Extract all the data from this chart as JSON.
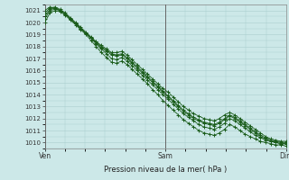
{
  "title": "Pression niveau de la mer( hPa )",
  "bg_color": "#cce8e8",
  "grid_color": "#aacece",
  "line_color": "#1a5c1a",
  "ylim": [
    1009.5,
    1021.5
  ],
  "yticks": [
    1010,
    1011,
    1012,
    1013,
    1014,
    1015,
    1016,
    1017,
    1018,
    1019,
    1020,
    1021
  ],
  "xtick_labels": [
    "Ven",
    "Sam",
    "Dim"
  ],
  "xtick_positions": [
    0,
    0.5,
    1.0
  ],
  "series": {
    "line1": [
      1021.0,
      1021.3,
      1021.2,
      1021.0,
      1020.7,
      1020.3,
      1019.9,
      1019.5,
      1019.1,
      1018.7,
      1018.4,
      1018.1,
      1017.8,
      1017.5,
      1017.5,
      1017.6,
      1017.3,
      1016.9,
      1016.5,
      1016.1,
      1015.7,
      1015.3,
      1014.9,
      1014.5,
      1014.2,
      1013.8,
      1013.4,
      1013.0,
      1012.7,
      1012.4,
      1012.2,
      1012.0,
      1011.9,
      1011.8,
      1012.0,
      1012.3,
      1012.5,
      1012.3,
      1012.0,
      1011.7,
      1011.4,
      1011.1,
      1010.8,
      1010.5,
      1010.3,
      1010.2,
      1010.1,
      1010.1
    ],
    "line2": [
      1020.5,
      1021.1,
      1021.2,
      1021.0,
      1020.7,
      1020.3,
      1019.9,
      1019.5,
      1019.1,
      1018.7,
      1018.3,
      1017.9,
      1017.6,
      1017.3,
      1017.2,
      1017.3,
      1017.0,
      1016.6,
      1016.2,
      1015.8,
      1015.4,
      1015.0,
      1014.6,
      1014.2,
      1013.8,
      1013.4,
      1013.0,
      1012.6,
      1012.3,
      1012.0,
      1011.8,
      1011.6,
      1011.5,
      1011.4,
      1011.6,
      1011.9,
      1012.2,
      1012.0,
      1011.7,
      1011.4,
      1011.1,
      1010.8,
      1010.5,
      1010.3,
      1010.1,
      1010.0,
      1009.9,
      1009.9
    ],
    "line3": [
      1020.8,
      1021.2,
      1021.3,
      1021.1,
      1020.8,
      1020.4,
      1020.0,
      1019.6,
      1019.2,
      1018.8,
      1018.4,
      1018.0,
      1017.7,
      1017.4,
      1017.3,
      1017.4,
      1017.1,
      1016.7,
      1016.3,
      1015.9,
      1015.5,
      1015.1,
      1014.7,
      1014.3,
      1013.9,
      1013.5,
      1013.1,
      1012.7,
      1012.4,
      1012.1,
      1011.9,
      1011.7,
      1011.6,
      1011.5,
      1011.7,
      1012.0,
      1012.3,
      1012.1,
      1011.8,
      1011.5,
      1011.2,
      1010.9,
      1010.6,
      1010.4,
      1010.2,
      1010.1,
      1010.0,
      1010.0
    ],
    "line4": [
      1020.3,
      1021.0,
      1021.1,
      1021.0,
      1020.7,
      1020.3,
      1019.9,
      1019.5,
      1019.1,
      1018.7,
      1018.2,
      1017.8,
      1017.4,
      1017.0,
      1016.9,
      1017.1,
      1016.8,
      1016.4,
      1016.0,
      1015.6,
      1015.2,
      1014.8,
      1014.4,
      1014.0,
      1013.6,
      1013.2,
      1012.8,
      1012.4,
      1012.1,
      1011.8,
      1011.5,
      1011.3,
      1011.2,
      1011.1,
      1011.3,
      1011.6,
      1012.0,
      1011.8,
      1011.5,
      1011.2,
      1010.9,
      1010.6,
      1010.4,
      1010.2,
      1010.1,
      1010.0,
      1009.9,
      1009.9
    ],
    "line5": [
      1020.0,
      1020.8,
      1021.0,
      1020.9,
      1020.6,
      1020.2,
      1019.8,
      1019.4,
      1019.0,
      1018.5,
      1018.0,
      1017.5,
      1017.1,
      1016.7,
      1016.6,
      1016.8,
      1016.5,
      1016.1,
      1015.7,
      1015.3,
      1014.9,
      1014.4,
      1014.0,
      1013.5,
      1013.1,
      1012.7,
      1012.3,
      1011.9,
      1011.6,
      1011.3,
      1011.0,
      1010.8,
      1010.7,
      1010.6,
      1010.8,
      1011.1,
      1011.5,
      1011.3,
      1011.0,
      1010.7,
      1010.5,
      1010.3,
      1010.1,
      1010.0,
      1009.9,
      1009.8,
      1009.8,
      1009.7
    ]
  }
}
